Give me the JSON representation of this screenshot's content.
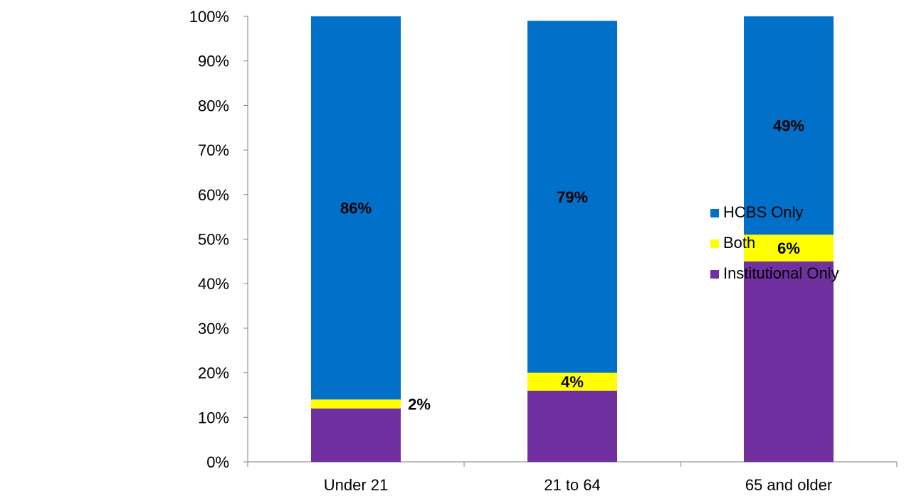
{
  "chart_data": {
    "type": "bar",
    "stacked": true,
    "percent_scale": true,
    "categories": [
      "Under 21",
      "21 to 64",
      "65 and older"
    ],
    "series": [
      {
        "name": "Institutional Only",
        "color": "#7030A0",
        "values": [
          12,
          16,
          45
        ],
        "labels": [
          "12%",
          "16%",
          "45%"
        ],
        "label_color": "#7030A0"
      },
      {
        "name": "Both",
        "color": "#FFFF00",
        "values": [
          2,
          4,
          6
        ],
        "labels": [
          "2%",
          "4%",
          "6%"
        ],
        "label_color": "#000000"
      },
      {
        "name": "HCBS Only",
        "color": "#0070C8",
        "values": [
          86,
          79,
          49
        ],
        "labels": [
          "86%",
          "79%",
          "49%"
        ],
        "label_color": "#000000"
      }
    ],
    "y_ticks": [
      "0%",
      "10%",
      "20%",
      "30%",
      "40%",
      "50%",
      "60%",
      "70%",
      "80%",
      "90%",
      "100%"
    ],
    "ylim": [
      0,
      100
    ],
    "title": "",
    "xlabel": "",
    "ylabel": "",
    "grid": false,
    "legend_position": "right"
  }
}
